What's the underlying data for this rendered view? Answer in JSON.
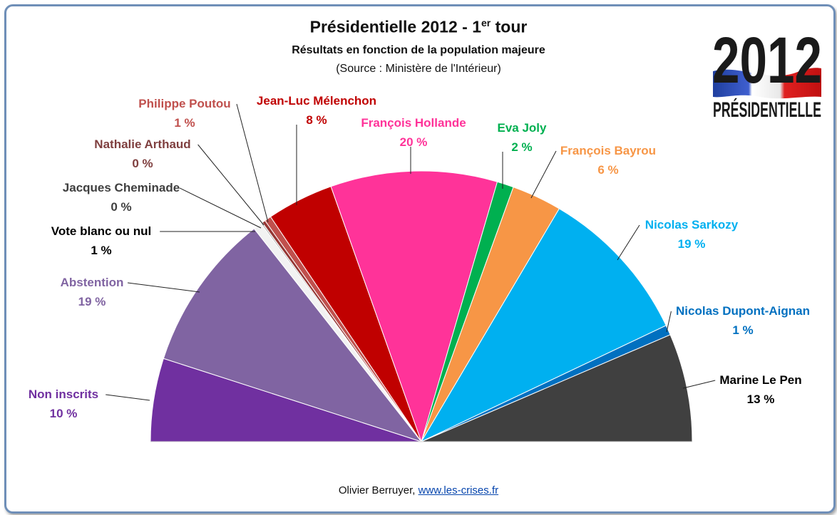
{
  "header": {
    "title": "Présidentielle  2012 - 1",
    "title_sup": "er",
    "title_end": " tour",
    "subtitle": "Résultats en fonction de la population majeure",
    "source": "(Source : Ministère de l'Intérieur)"
  },
  "logo": {
    "year": "2012",
    "word": "PRÉSIDENTIELLE"
  },
  "footer": {
    "author": "Olivier Berruyer, ",
    "link": "www.les-crises.fr"
  },
  "chart_data": {
    "type": "pie",
    "subtype": "half-donut (semicircle)",
    "title": "Présidentielle  2012 - 1er tour",
    "subtitle": "Résultats en fonction de la population majeure",
    "slices": [
      {
        "name": "Non inscrits",
        "label": "10 %",
        "value": 10,
        "color": "#7030a0"
      },
      {
        "name": "Abstention",
        "label": "19 %",
        "value": 19,
        "color": "#8064a2"
      },
      {
        "name": "Vote blanc ou nul",
        "label": "1 %",
        "value": 1,
        "color": "#f2f2f2"
      },
      {
        "name": "Jacques Cheminade",
        "label": "0 %",
        "value": 0.2,
        "color": "#bfbfbf"
      },
      {
        "name": "Nathalie Arthaud",
        "label": "0 %",
        "value": 0.4,
        "color": "#953735"
      },
      {
        "name": "Philippe Poutou",
        "label": "1 %",
        "value": 0.8,
        "color": "#c0504d"
      },
      {
        "name": "Jean-Luc Mélenchon",
        "label": "8 %",
        "value": 8,
        "color": "#c00000"
      },
      {
        "name": "François Hollande",
        "label": "20 %",
        "value": 20,
        "color": "#ff3399"
      },
      {
        "name": "Eva Joly",
        "label": "2 %",
        "value": 2,
        "color": "#00b050"
      },
      {
        "name": "François Bayrou",
        "label": "6 %",
        "value": 6,
        "color": "#f79646"
      },
      {
        "name": "Nicolas Sarkozy",
        "label": "19 %",
        "value": 19,
        "color": "#00b0f0"
      },
      {
        "name": "Nicolas Dupont-Aignan",
        "label": "1 %",
        "value": 1.2,
        "color": "#0070c0"
      },
      {
        "name": "Marine Le Pen",
        "label": "13 %",
        "value": 13,
        "color": "#404040"
      }
    ],
    "label_colors": {
      "Non inscrits": "#7030a0",
      "Abstention": "#8064a2",
      "Vote blanc ou nul": "#000000",
      "Jacques Cheminade": "#3f3f3f",
      "Nathalie Arthaud": "#7f3f3f",
      "Philippe Poutou": "#c0504d",
      "Jean-Luc Mélenchon": "#c00000",
      "François Hollande": "#ff3399",
      "Eva Joly": "#00b050",
      "François Bayrou": "#f79646",
      "Nicolas Sarkozy": "#00b0f0",
      "Nicolas Dupont-Aignan": "#0070c0",
      "Marine Le Pen": "#000000"
    }
  }
}
